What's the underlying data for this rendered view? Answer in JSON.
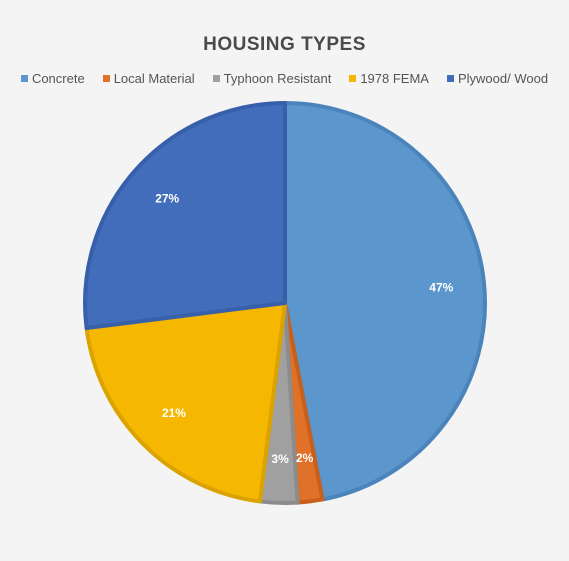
{
  "chart_data": {
    "type": "pie",
    "title": "HOUSING TYPES",
    "legend_position": "top",
    "slices": [
      {
        "name": "Concrete",
        "value": 47,
        "label": "47%",
        "color": "#5b96cc",
        "stroke": "#4a84bb"
      },
      {
        "name": "Local Material",
        "value": 2,
        "label": "2%",
        "color": "#e07128",
        "stroke": "#c85f1c"
      },
      {
        "name": "Typhoon Resistant",
        "value": 3,
        "label": "3%",
        "color": "#a0a0a0",
        "stroke": "#8c8c8c"
      },
      {
        "name": "1978 FEMA",
        "value": 21,
        "label": "21%",
        "color": "#f5b700",
        "stroke": "#dba300"
      },
      {
        "name": "Plywood/ Wood",
        "value": 27,
        "label": "27%",
        "color": "#426dba",
        "stroke": "#3860aa"
      }
    ]
  }
}
